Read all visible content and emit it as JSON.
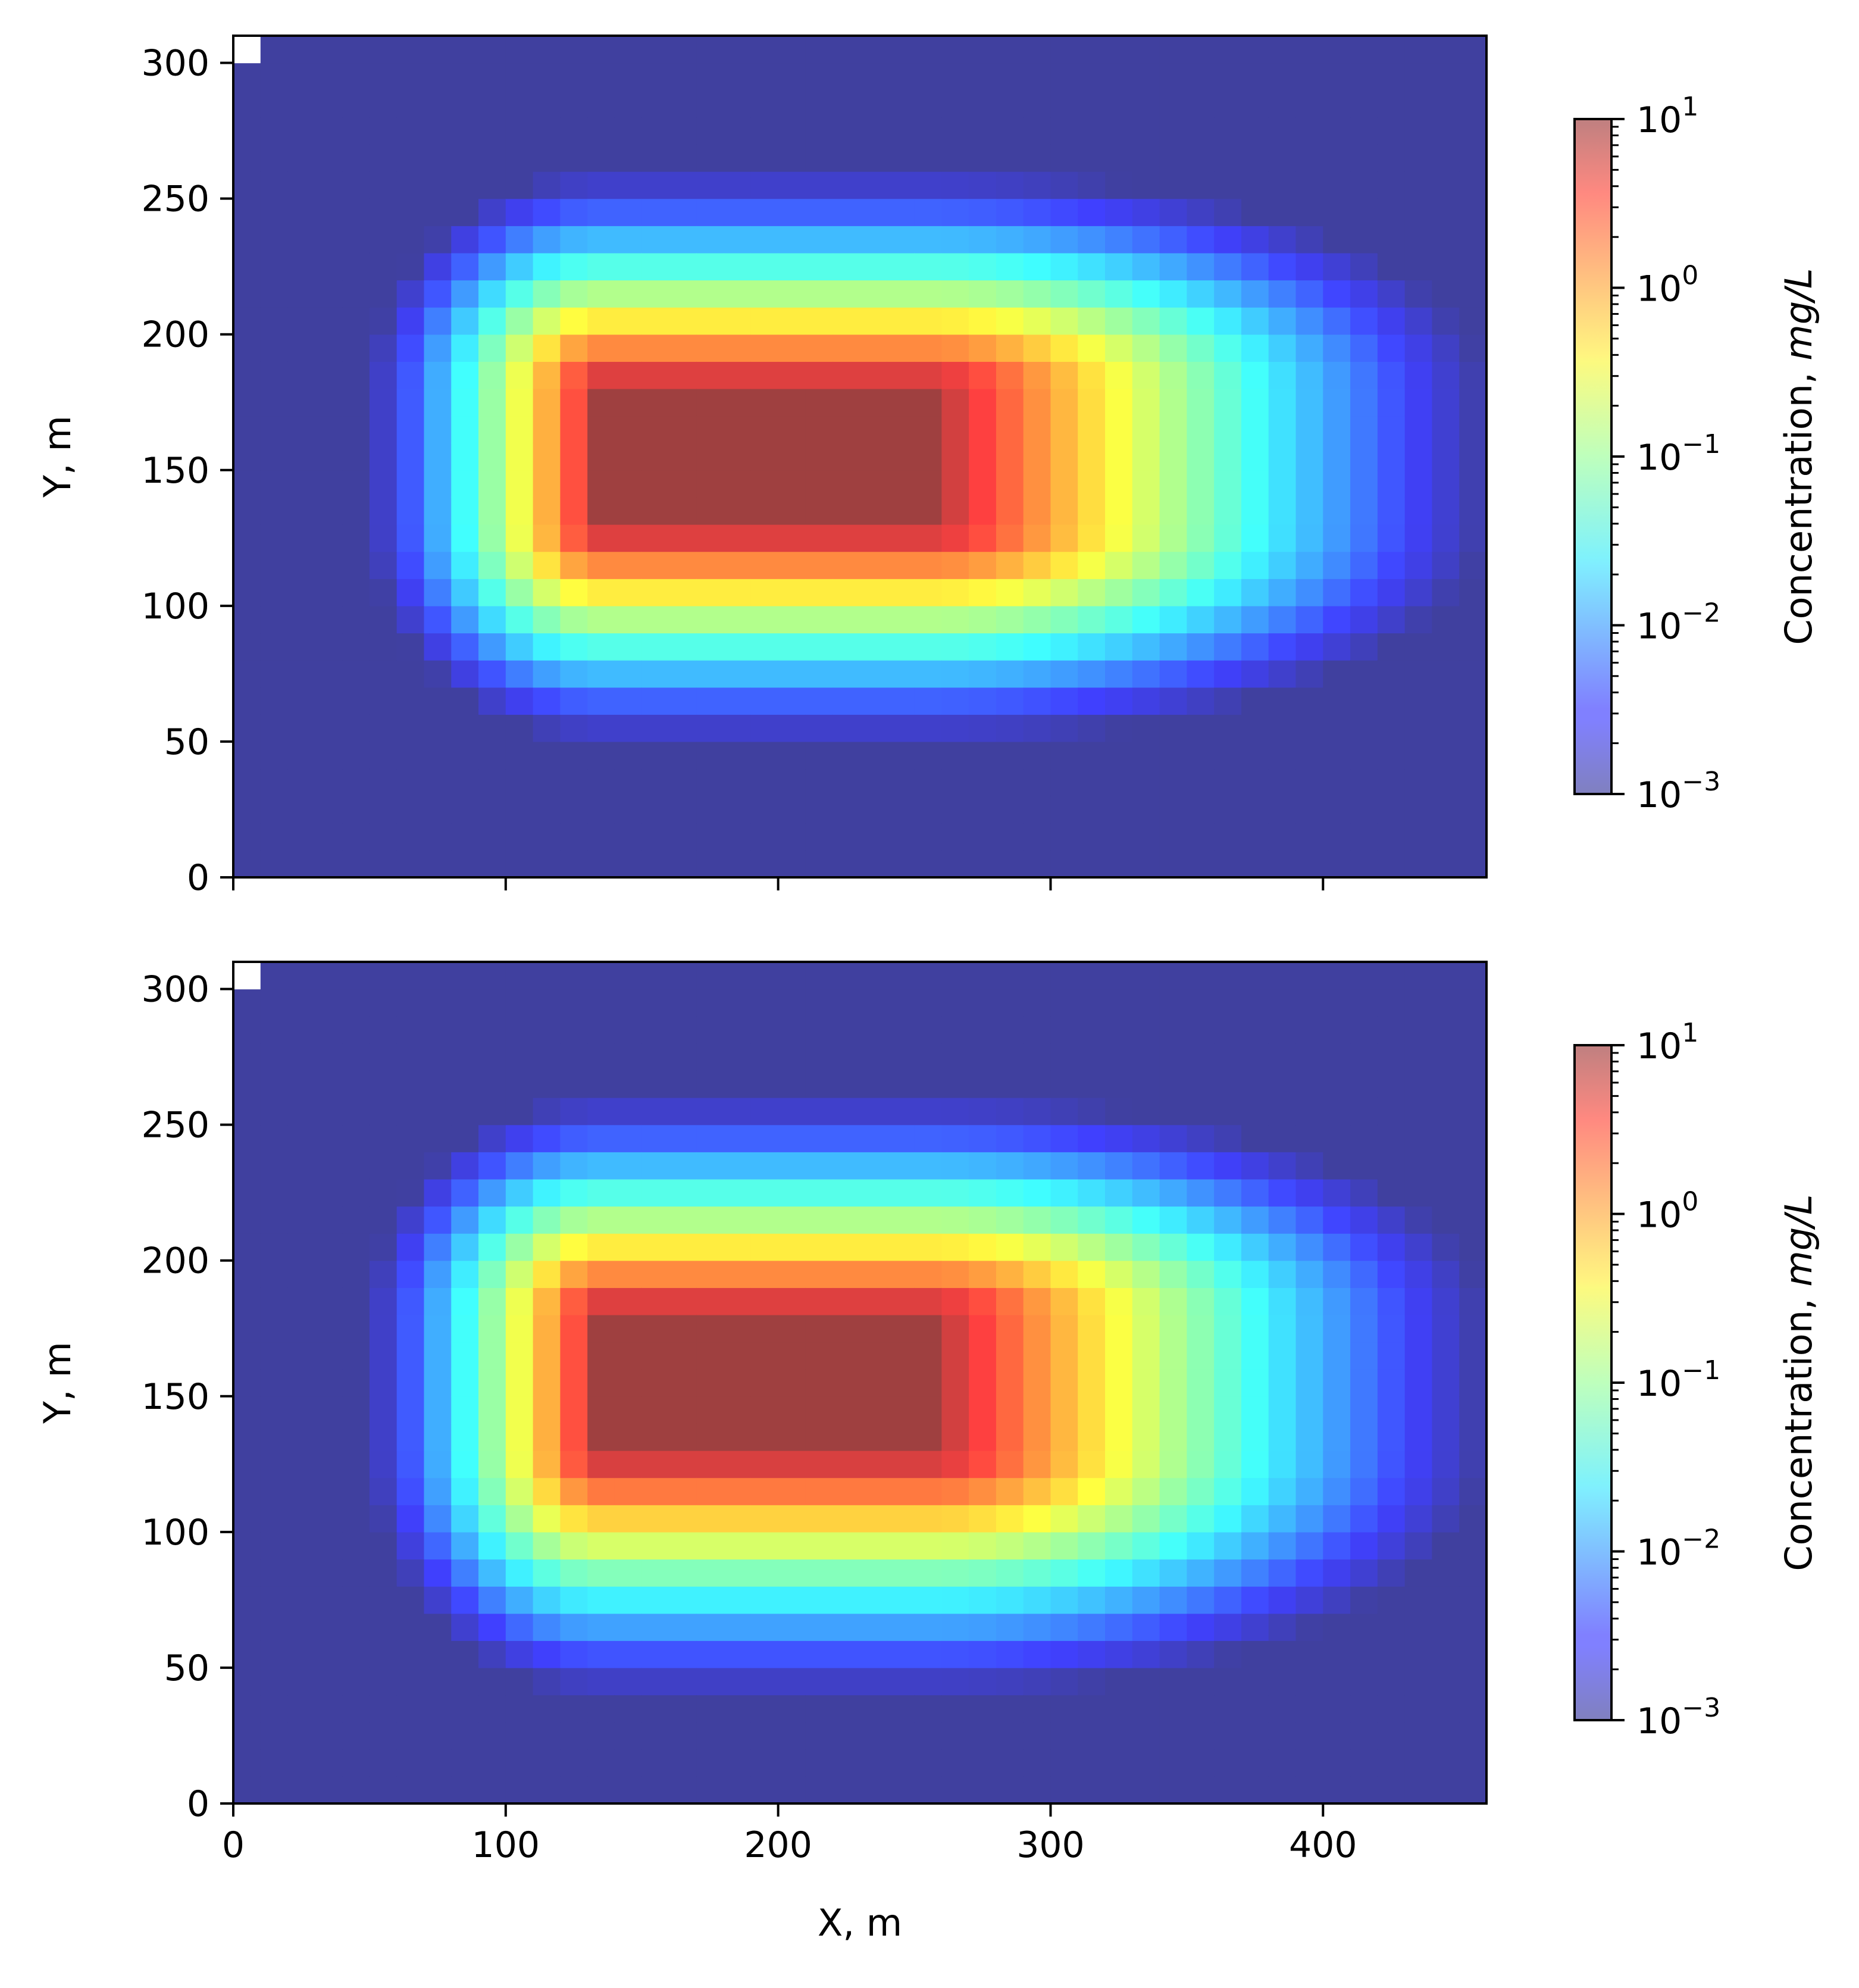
{
  "chart_data": [
    {
      "type": "heatmap",
      "panel": "top",
      "title": "",
      "xlabel": "",
      "ylabel": "Y, m",
      "xlim": [
        0,
        460
      ],
      "ylim": [
        0,
        310
      ],
      "x_ticks": [
        0,
        100,
        200,
        300,
        400
      ],
      "y_ticks": [
        0,
        50,
        100,
        150,
        200,
        250,
        300
      ],
      "show_x_tick_labels": false,
      "cell_size_m": 10,
      "grid": false,
      "colormap": "jet",
      "scale": "log",
      "overlay_alpha": 0.5,
      "plume": {
        "source_x_range": [
          135,
          255
        ],
        "source_y_range": [
          130,
          180
        ],
        "peak_concentration_mg_L": 10,
        "x_extent_at_1e-3": [
          50,
          460
        ],
        "y_extent_at_1e-3": [
          50,
          260
        ],
        "y_center": 152
      },
      "colorbar": {
        "label_prefix": "Concentration, ",
        "label_units": "mg/L",
        "range": [
          0.001,
          10
        ],
        "ticks": [
          {
            "base": "10",
            "exp": "1"
          },
          {
            "base": "10",
            "exp": "0"
          },
          {
            "base": "10",
            "exp": "−1"
          },
          {
            "base": "10",
            "exp": "−2"
          },
          {
            "base": "10",
            "exp": "−3"
          }
        ]
      }
    },
    {
      "type": "heatmap",
      "panel": "bottom",
      "title": "",
      "xlabel": "X, m",
      "ylabel": "Y, m",
      "xlim": [
        0,
        460
      ],
      "ylim": [
        0,
        310
      ],
      "x_ticks": [
        0,
        100,
        200,
        300,
        400
      ],
      "y_ticks": [
        0,
        50,
        100,
        150,
        200,
        250,
        300
      ],
      "show_x_tick_labels": true,
      "cell_size_m": 10,
      "grid": false,
      "colormap": "jet",
      "scale": "log",
      "overlay_alpha": 0.5,
      "plume": {
        "source_x_range": [
          135,
          255
        ],
        "source_y_range": [
          130,
          180
        ],
        "peak_concentration_mg_L": 10,
        "x_extent_at_1e-3": [
          50,
          460
        ],
        "y_extent_at_1e-3": [
          40,
          260
        ],
        "y_center": 150
      },
      "colorbar": {
        "label_prefix": "Concentration, ",
        "label_units": "mg/L",
        "range": [
          0.001,
          10
        ],
        "ticks": [
          {
            "base": "10",
            "exp": "1"
          },
          {
            "base": "10",
            "exp": "0"
          },
          {
            "base": "10",
            "exp": "−1"
          },
          {
            "base": "10",
            "exp": "−2"
          },
          {
            "base": "10",
            "exp": "−3"
          }
        ]
      }
    }
  ]
}
